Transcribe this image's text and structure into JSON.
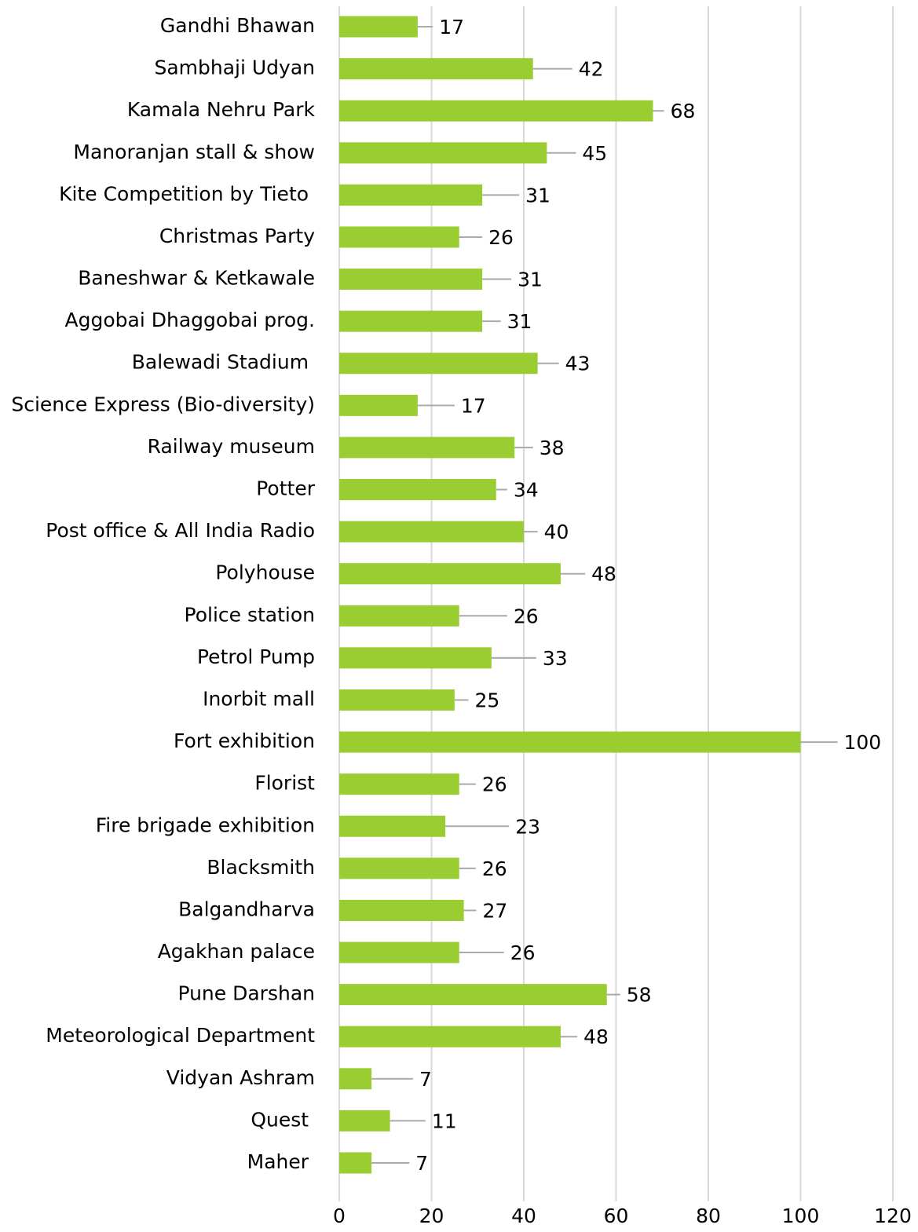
{
  "chart_data": {
    "type": "bar",
    "orientation": "horizontal",
    "categories": [
      "Gandhi Bhawan",
      "Sambhaji Udyan",
      "Kamala Nehru Park",
      "Manoranjan stall & show",
      "Kite Competition by Tieto ",
      "Christmas Party",
      "Baneshwar & Ketkawale",
      "Aggobai Dhaggobai prog.",
      "Balewadi Stadium ",
      "Science Express (Bio-diversity)",
      "Railway museum",
      "Potter",
      "Post office & All India Radio",
      "Polyhouse",
      "Police station",
      "Petrol Pump",
      "Inorbit mall",
      "Fort exhibition",
      "Florist",
      "Fire brigade exhibition",
      "Blacksmith",
      "Balgandharva",
      "Agakhan palace",
      "Pune Darshan",
      "Meteorological Department",
      "Vidyan Ashram",
      "Quest ",
      "Maher "
    ],
    "values": [
      17,
      42,
      68,
      45,
      31,
      26,
      31,
      31,
      43,
      17,
      38,
      34,
      40,
      48,
      26,
      33,
      25,
      100,
      26,
      23,
      26,
      27,
      26,
      58,
      48,
      7,
      11,
      7
    ],
    "errors": [
      3.3,
      8.5,
      2.4,
      6.3,
      8,
      5,
      6.3,
      4,
      4.6,
      8,
      4,
      2.4,
      3,
      5.3,
      10.4,
      9.7,
      3,
      8,
      3.6,
      13.8,
      3.6,
      2.7,
      9.7,
      2.9,
      3.6,
      9,
      7.7,
      8.2
    ],
    "color": "#9acd32",
    "error_color": "#aaaaaa",
    "xlim": [
      0,
      120
    ],
    "xticks": [
      0,
      20,
      40,
      60,
      80,
      100,
      120
    ],
    "grid": true
  }
}
